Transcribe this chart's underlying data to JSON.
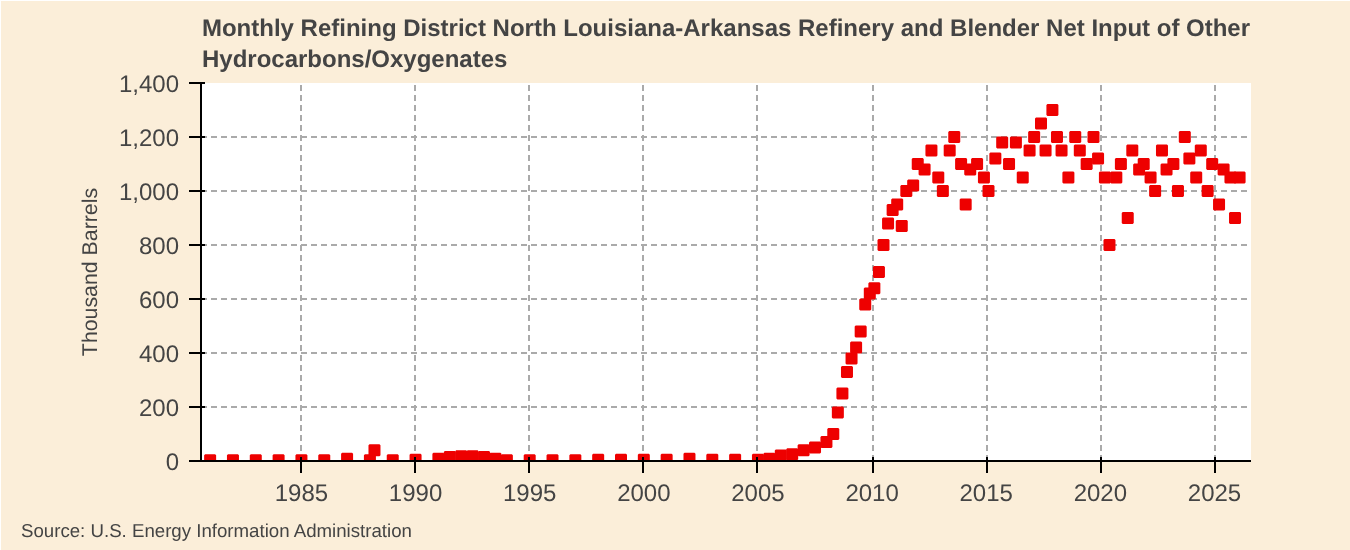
{
  "chart_data": {
    "type": "scatter",
    "title": "Monthly Refining District North Louisiana-Arkansas Refinery and Blender Net Input of Other Hydrocarbons/Oxygenates",
    "ylabel": "Thousand Barrels",
    "annotations": [
      "Source: U.S. Energy Information Administration"
    ],
    "xlim": [
      1980.6,
      2026.6
    ],
    "xticks": [
      1985,
      1990,
      1995,
      2000,
      2005,
      2010,
      2015,
      2020,
      2025
    ],
    "ylim": [
      0,
      1400
    ],
    "yticks": [
      {
        "value": 0,
        "label": "0"
      },
      {
        "value": 200,
        "label": "200"
      },
      {
        "value": 400,
        "label": "400"
      },
      {
        "value": 600,
        "label": "600"
      },
      {
        "value": 800,
        "label": "800"
      },
      {
        "value": 1000,
        "label": "1,000"
      },
      {
        "value": 1200,
        "label": "1,200"
      },
      {
        "value": 1400,
        "label": "1,400"
      }
    ],
    "grid": true,
    "marker": "square",
    "series": [
      {
        "color": "#ee0000",
        "x": [
          1981.0,
          1982.0,
          1983.0,
          1984.0,
          1985.0,
          1986.0,
          1987.0,
          1988.0,
          1988.2,
          1989.0,
          1990.0,
          1991.0,
          1991.5,
          1992.0,
          1992.5,
          1993.0,
          1993.5,
          1994.0,
          1995.0,
          1996.0,
          1997.0,
          1998.0,
          1999.0,
          2000.0,
          2001.0,
          2002.0,
          2003.0,
          2004.0,
          2005.0,
          2005.5,
          2006.0,
          2006.5,
          2007.0,
          2007.5,
          2008.0,
          2008.3,
          2008.5,
          2008.7,
          2008.9,
          2009.1,
          2009.3,
          2009.5,
          2009.7,
          2009.9,
          2010.1,
          2010.3,
          2010.5,
          2010.7,
          2010.9,
          2011.1,
          2011.3,
          2011.5,
          2011.8,
          2012.0,
          2012.3,
          2012.6,
          2012.9,
          2013.1,
          2013.4,
          2013.6,
          2013.9,
          2014.1,
          2014.3,
          2014.6,
          2014.9,
          2015.1,
          2015.4,
          2015.7,
          2016.0,
          2016.3,
          2016.6,
          2016.9,
          2017.1,
          2017.4,
          2017.6,
          2017.9,
          2018.1,
          2018.3,
          2018.6,
          2018.9,
          2019.1,
          2019.4,
          2019.7,
          2019.9,
          2020.2,
          2020.4,
          2020.7,
          2020.9,
          2021.2,
          2021.4,
          2021.7,
          2021.9,
          2022.2,
          2022.4,
          2022.7,
          2022.9,
          2023.2,
          2023.4,
          2023.7,
          2023.9,
          2024.2,
          2024.4,
          2024.7,
          2024.9,
          2025.2,
          2025.4,
          2025.7,
          2025.9,
          2026.1
        ],
        "values": [
          3,
          3,
          3,
          3,
          3,
          3,
          8,
          3,
          40,
          3,
          5,
          8,
          15,
          18,
          18,
          15,
          8,
          3,
          3,
          3,
          3,
          5,
          5,
          5,
          5,
          8,
          5,
          5,
          5,
          8,
          20,
          25,
          40,
          50,
          70,
          100,
          180,
          250,
          330,
          380,
          420,
          480,
          580,
          620,
          640,
          700,
          800,
          880,
          930,
          950,
          870,
          1000,
          1020,
          1100,
          1080,
          1150,
          1050,
          1000,
          1150,
          1200,
          1100,
          950,
          1080,
          1100,
          1050,
          1000,
          1120,
          1180,
          1100,
          1180,
          1050,
          1150,
          1200,
          1250,
          1150,
          1300,
          1200,
          1150,
          1050,
          1200,
          1150,
          1100,
          1200,
          1120,
          1050,
          800,
          1050,
          1100,
          900,
          1150,
          1080,
          1100,
          1050,
          1000,
          1150,
          1080,
          1100,
          1000,
          1200,
          1120,
          1050,
          1150,
          1000,
          1100,
          950,
          1080,
          1050,
          900,
          1050
        ]
      }
    ]
  }
}
